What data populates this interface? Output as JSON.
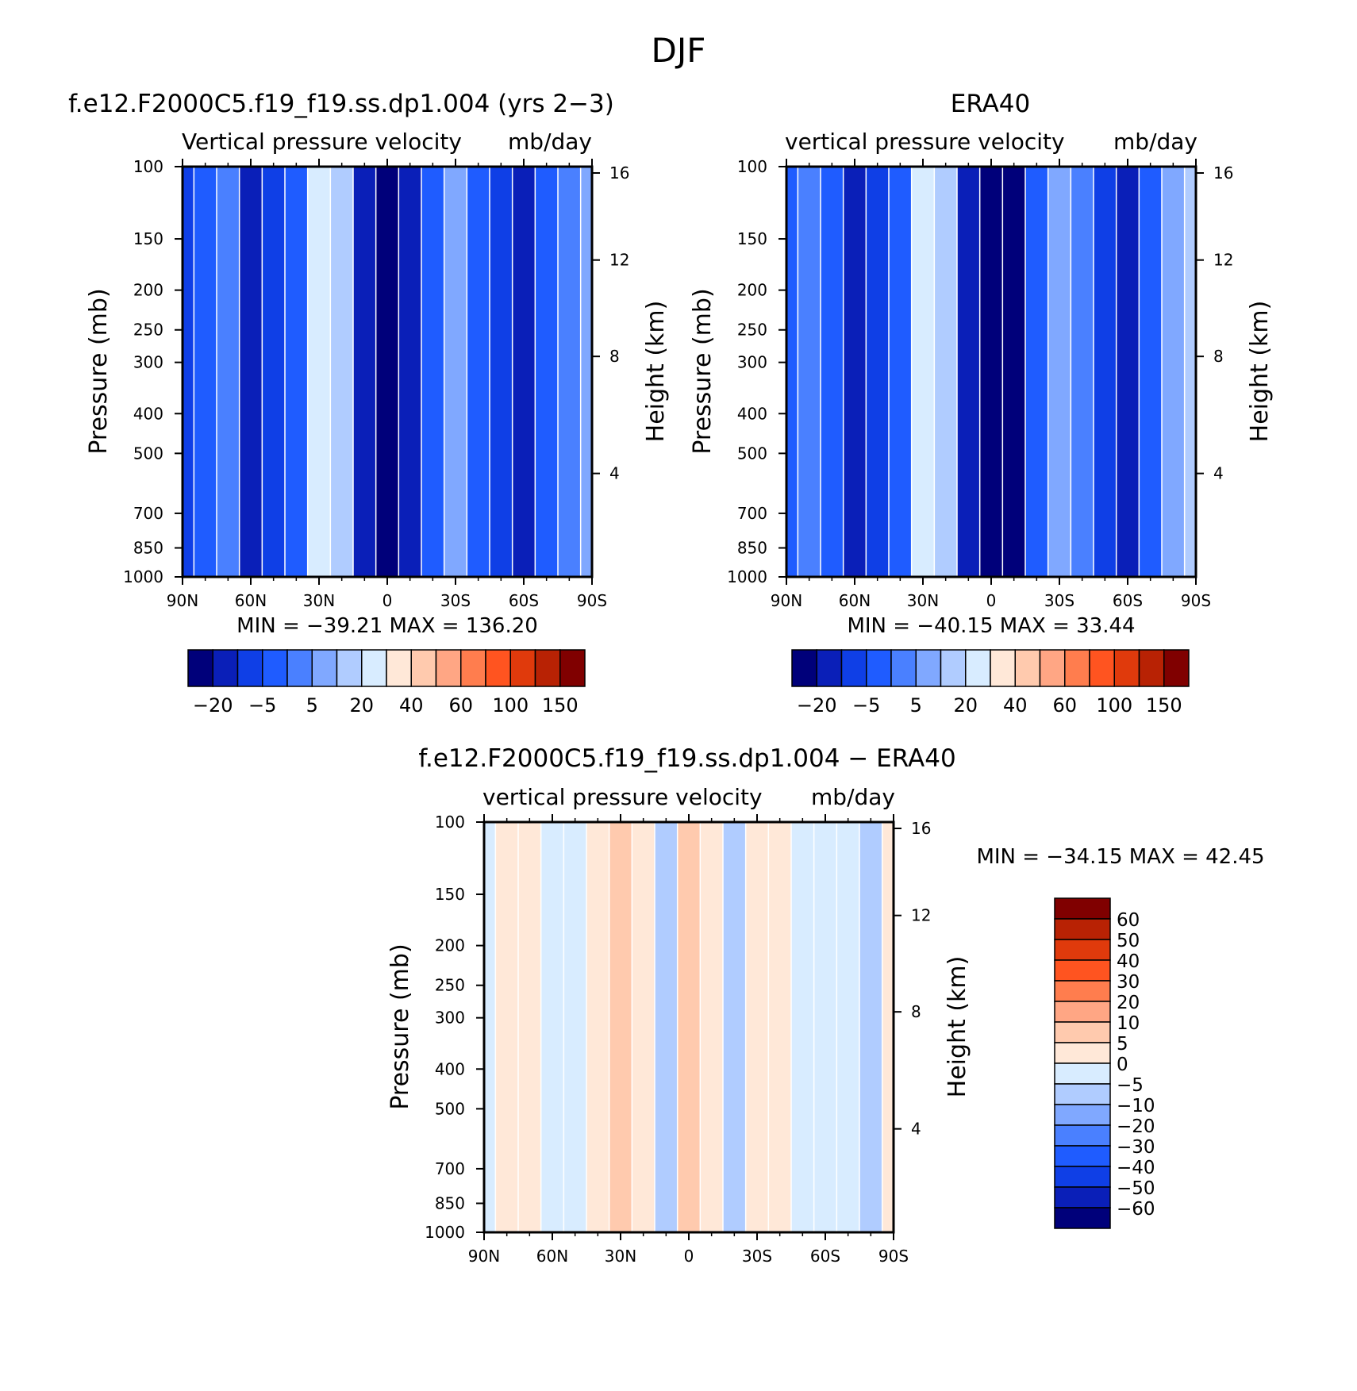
{
  "figure": {
    "title": "DJF"
  },
  "colors": {
    "abs_palette": [
      "#00007a",
      "#0a1fb8",
      "#0f3fe6",
      "#1f5cff",
      "#4a80ff",
      "#80a8ff",
      "#b0ccff",
      "#d8ecff",
      "#ffe8d8",
      "#ffcaae",
      "#ffa684",
      "#ff7d4e",
      "#ff5420",
      "#e03a0c",
      "#b82204",
      "#800000"
    ],
    "diff_palette": [
      "#00007a",
      "#0a1fb8",
      "#0f3fe6",
      "#1f5cff",
      "#4a80ff",
      "#80a8ff",
      "#b0ccff",
      "#d8ecff",
      "#ffe8d8",
      "#ffcaae",
      "#ffa684",
      "#ff7d4e",
      "#ff5420",
      "#e03a0c",
      "#b82204",
      "#800000"
    ]
  },
  "chart_data": [
    {
      "type": "heatmap",
      "title": "f.e12.F2000C5.f19_f19.ss.dp1.004 (yrs 2−3)",
      "subtitle_left": "Vertical pressure velocity",
      "subtitle_right": "mb/day",
      "ylabel": "Pressure (mb)",
      "ylabel_right": "Height (km)",
      "x_ticks": [
        "90N",
        "60N",
        "30N",
        "0",
        "30S",
        "60S",
        "90S"
      ],
      "y_ticks": [
        "100",
        "150",
        "200",
        "250",
        "300",
        "400",
        "500",
        "700",
        "850",
        "1000"
      ],
      "y_ticks_right": [
        "16",
        "12",
        "8",
        "4"
      ],
      "stats": "MIN = −39.21   MAX = 136.20",
      "colorbar_labels": [
        "−20",
        "−5",
        "5",
        "20",
        "40",
        "60",
        "100",
        "150"
      ],
      "x_range_deg": [
        90,
        -90
      ],
      "y_range_mb": [
        100,
        1000
      ],
      "y_scale": "log",
      "columns": [
        {
          "lat": 90,
          "lev": 2
        },
        {
          "lat": 80,
          "lev": 3
        },
        {
          "lat": 70,
          "lev": 4
        },
        {
          "lat": 60,
          "lev": 1
        },
        {
          "lat": 50,
          "lev": 2
        },
        {
          "lat": 40,
          "lev": 3
        },
        {
          "lat": 30,
          "lev": 7
        },
        {
          "lat": 20,
          "lev": 6
        },
        {
          "lat": 10,
          "lev": 1
        },
        {
          "lat": 0,
          "lev": 0
        },
        {
          "lat": -10,
          "lev": 1
        },
        {
          "lat": -20,
          "lev": 3
        },
        {
          "lat": -30,
          "lev": 5
        },
        {
          "lat": -40,
          "lev": 3
        },
        {
          "lat": -50,
          "lev": 2
        },
        {
          "lat": -60,
          "lev": 1
        },
        {
          "lat": -70,
          "lev": 3
        },
        {
          "lat": -80,
          "lev": 4
        },
        {
          "lat": -90,
          "lev": 5
        }
      ]
    },
    {
      "type": "heatmap",
      "title": "ERA40",
      "subtitle_left": "vertical pressure velocity",
      "subtitle_right": "mb/day",
      "ylabel": "Pressure (mb)",
      "ylabel_right": "Height (km)",
      "x_ticks": [
        "90N",
        "60N",
        "30N",
        "0",
        "30S",
        "60S",
        "90S"
      ],
      "y_ticks": [
        "100",
        "150",
        "200",
        "250",
        "300",
        "400",
        "500",
        "700",
        "850",
        "1000"
      ],
      "y_ticks_right": [
        "16",
        "12",
        "8",
        "4"
      ],
      "stats": "MIN = −40.15   MAX =   33.44",
      "colorbar_labels": [
        "−20",
        "−5",
        "5",
        "20",
        "40",
        "60",
        "100",
        "150"
      ],
      "x_range_deg": [
        90,
        -90
      ],
      "y_range_mb": [
        100,
        1000
      ],
      "y_scale": "log",
      "columns": [
        {
          "lat": 90,
          "lev": 3
        },
        {
          "lat": 80,
          "lev": 4
        },
        {
          "lat": 70,
          "lev": 3
        },
        {
          "lat": 60,
          "lev": 1
        },
        {
          "lat": 50,
          "lev": 2
        },
        {
          "lat": 40,
          "lev": 3
        },
        {
          "lat": 30,
          "lev": 7
        },
        {
          "lat": 20,
          "lev": 6
        },
        {
          "lat": 10,
          "lev": 1
        },
        {
          "lat": 0,
          "lev": 0
        },
        {
          "lat": -10,
          "lev": 0
        },
        {
          "lat": -20,
          "lev": 3
        },
        {
          "lat": -30,
          "lev": 5
        },
        {
          "lat": -40,
          "lev": 4
        },
        {
          "lat": -50,
          "lev": 2
        },
        {
          "lat": -60,
          "lev": 1
        },
        {
          "lat": -70,
          "lev": 3
        },
        {
          "lat": -80,
          "lev": 5
        },
        {
          "lat": -90,
          "lev": 6
        }
      ]
    },
    {
      "type": "heatmap",
      "title": "f.e12.F2000C5.f19_f19.ss.dp1.004 − ERA40",
      "subtitle_left": "vertical pressure velocity",
      "subtitle_right": "mb/day",
      "ylabel": "Pressure (mb)",
      "ylabel_right": "Height (km)",
      "x_ticks": [
        "90N",
        "60N",
        "30N",
        "0",
        "30S",
        "60S",
        "90S"
      ],
      "y_ticks": [
        "100",
        "150",
        "200",
        "250",
        "300",
        "400",
        "500",
        "700",
        "850",
        "1000"
      ],
      "y_ticks_right": [
        "16",
        "12",
        "8",
        "4"
      ],
      "stats": "MIN = −34.15   MAX =   42.45",
      "colorbar_labels": [
        "60",
        "50",
        "40",
        "30",
        "20",
        "10",
        "5",
        "0",
        "−5",
        "−10",
        "−20",
        "−30",
        "−40",
        "−50",
        "−60"
      ],
      "x_range_deg": [
        90,
        -90
      ],
      "y_range_mb": [
        100,
        1000
      ],
      "y_scale": "log",
      "columns": [
        {
          "lat": 90,
          "lev": 7
        },
        {
          "lat": 80,
          "lev": 8
        },
        {
          "lat": 70,
          "lev": 8
        },
        {
          "lat": 60,
          "lev": 7
        },
        {
          "lat": 50,
          "lev": 7
        },
        {
          "lat": 40,
          "lev": 8
        },
        {
          "lat": 30,
          "lev": 9
        },
        {
          "lat": 20,
          "lev": 8
        },
        {
          "lat": 10,
          "lev": 6
        },
        {
          "lat": 0,
          "lev": 9
        },
        {
          "lat": -10,
          "lev": 8
        },
        {
          "lat": -20,
          "lev": 6
        },
        {
          "lat": -30,
          "lev": 8
        },
        {
          "lat": -40,
          "lev": 8
        },
        {
          "lat": -50,
          "lev": 7
        },
        {
          "lat": -60,
          "lev": 7
        },
        {
          "lat": -70,
          "lev": 7
        },
        {
          "lat": -80,
          "lev": 6
        },
        {
          "lat": -90,
          "lev": 8
        }
      ]
    }
  ]
}
